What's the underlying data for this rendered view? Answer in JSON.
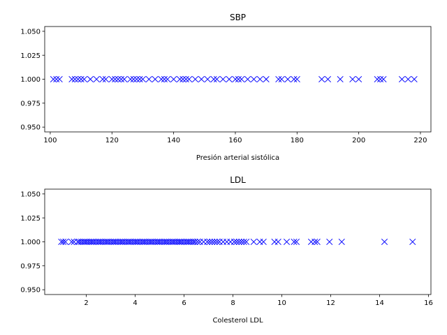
{
  "chart_data": [
    {
      "type": "scatter",
      "title": "SBP",
      "xlabel": "Presión arterial sistólica",
      "ylabel": "",
      "xlim": [
        98.2,
        223.4
      ],
      "ylim": [
        0.945,
        1.055
      ],
      "xticks": [
        100,
        120,
        140,
        160,
        180,
        200,
        220
      ],
      "yticks": [
        0.95,
        0.975,
        1.0,
        1.025,
        1.05
      ],
      "ytick_labels": [
        "0.950",
        "0.975",
        "1.000",
        "1.025",
        "1.050"
      ],
      "marker": "x",
      "color": "#0000ff",
      "grid": false,
      "y_constant": 1.0,
      "x": [
        101,
        102,
        103,
        107,
        108,
        109,
        110,
        111,
        113,
        115,
        117,
        118,
        120,
        121,
        122,
        123,
        124,
        126,
        127,
        128,
        129,
        130,
        132,
        134,
        136,
        137,
        138,
        140,
        142,
        143,
        144,
        145,
        147,
        149,
        151,
        153,
        154,
        156,
        158,
        160,
        161,
        162,
        164,
        166,
        168,
        170,
        174,
        175,
        177,
        179,
        180,
        188,
        190,
        194,
        198,
        200,
        206,
        207,
        208,
        214,
        216,
        218
      ]
    },
    {
      "type": "scatter",
      "title": "LDL",
      "xlabel": "Colesterol LDL",
      "ylabel": "",
      "xlim": [
        0.3,
        16.1
      ],
      "ylim": [
        0.945,
        1.055
      ],
      "xticks": [
        2,
        4,
        6,
        8,
        10,
        12,
        14,
        16
      ],
      "yticks": [
        0.95,
        0.975,
        1.0,
        1.025,
        1.05
      ],
      "ytick_labels": [
        "0.950",
        "0.975",
        "1.000",
        "1.025",
        "1.050"
      ],
      "marker": "x",
      "color": "#0000ff",
      "grid": false,
      "y_constant": 1.0,
      "x": [
        0.98,
        1.06,
        1.15,
        1.4,
        1.5,
        1.65,
        1.72,
        1.8,
        1.88,
        1.95,
        2.02,
        2.1,
        2.18,
        2.25,
        2.32,
        2.4,
        2.48,
        2.55,
        2.62,
        2.7,
        2.78,
        2.85,
        2.92,
        3.0,
        3.08,
        3.15,
        3.22,
        3.3,
        3.38,
        3.45,
        3.52,
        3.6,
        3.68,
        3.75,
        3.82,
        3.9,
        3.98,
        4.05,
        4.12,
        4.2,
        4.28,
        4.35,
        4.42,
        4.5,
        4.58,
        4.65,
        4.72,
        4.8,
        4.88,
        4.95,
        5.02,
        5.1,
        5.18,
        5.25,
        5.32,
        5.4,
        5.48,
        5.55,
        5.62,
        5.7,
        5.78,
        5.85,
        5.92,
        6.0,
        6.08,
        6.15,
        6.22,
        6.3,
        6.38,
        6.45,
        6.55,
        6.65,
        6.8,
        6.95,
        7.05,
        7.15,
        7.25,
        7.35,
        7.45,
        7.6,
        7.75,
        7.9,
        8.05,
        8.15,
        8.25,
        8.35,
        8.45,
        8.55,
        8.85,
        9.1,
        9.25,
        9.7,
        9.85,
        10.2,
        10.5,
        10.6,
        11.2,
        11.35,
        11.45,
        11.95,
        12.45,
        14.2,
        15.35
      ]
    }
  ]
}
